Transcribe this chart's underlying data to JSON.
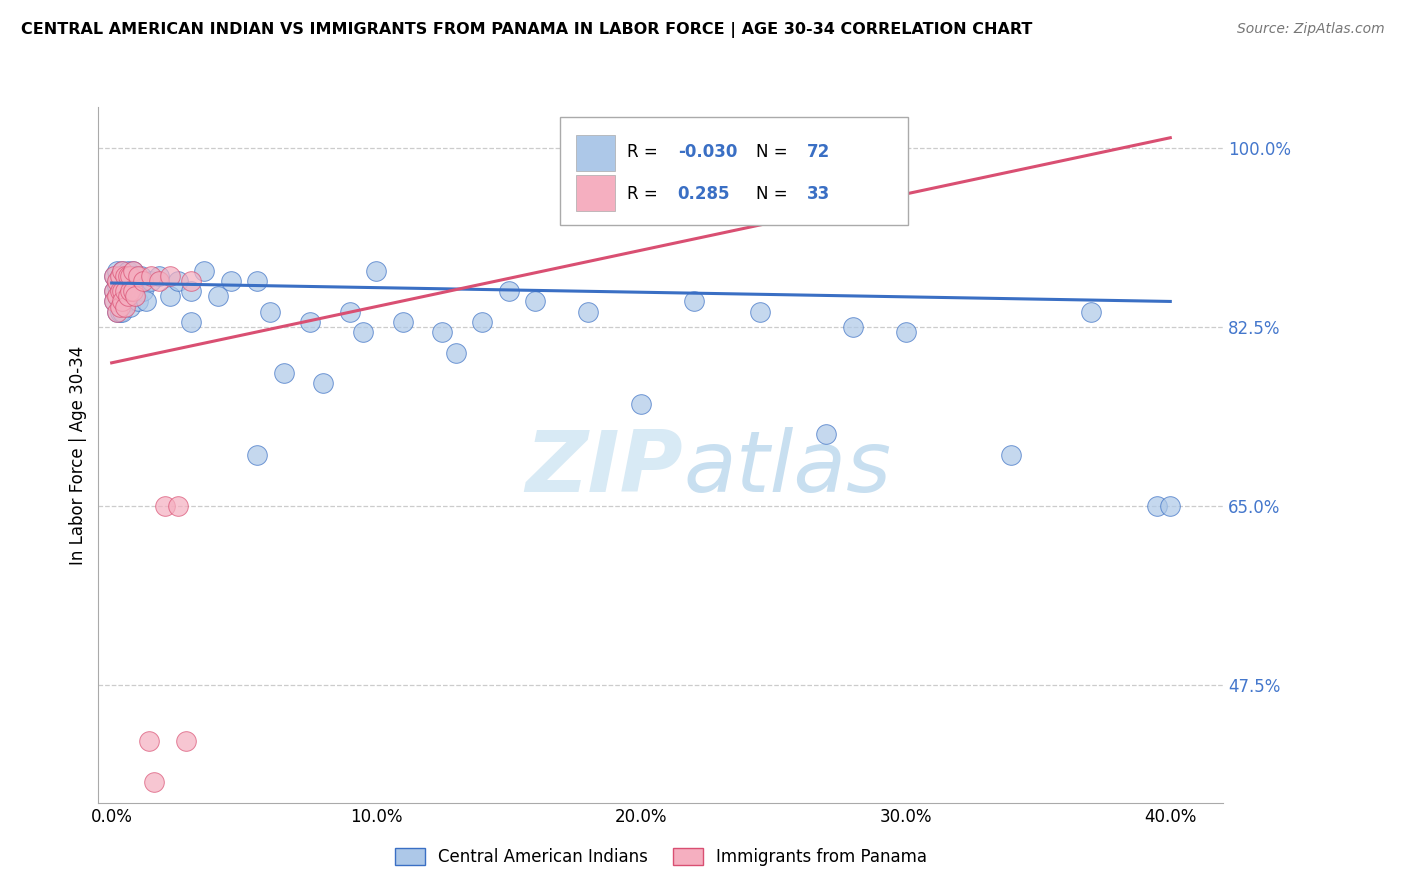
{
  "title": "CENTRAL AMERICAN INDIAN VS IMMIGRANTS FROM PANAMA IN LABOR FORCE | AGE 30-34 CORRELATION CHART",
  "source": "Source: ZipAtlas.com",
  "ylabel": "In Labor Force | Age 30-34",
  "blue_R": "-0.030",
  "blue_N": "72",
  "pink_R": "0.285",
  "pink_N": "33",
  "blue_color": "#adc8e8",
  "pink_color": "#f5afc0",
  "blue_line_color": "#3a6fc4",
  "pink_line_color": "#d94f72",
  "watermark_zip": "ZIP",
  "watermark_atlas": "atlas",
  "legend_label_blue": "Central American Indians",
  "legend_label_pink": "Immigrants from Panama",
  "blue_points_x": [
    0.001,
    0.001,
    0.001,
    0.002,
    0.002,
    0.002,
    0.002,
    0.002,
    0.003,
    0.003,
    0.003,
    0.003,
    0.003,
    0.003,
    0.004,
    0.004,
    0.004,
    0.004,
    0.005,
    0.005,
    0.005,
    0.005,
    0.006,
    0.006,
    0.006,
    0.007,
    0.007,
    0.007,
    0.008,
    0.008,
    0.009,
    0.009,
    0.01,
    0.01,
    0.011,
    0.012,
    0.013,
    0.015,
    0.018,
    0.022,
    0.025,
    0.03,
    0.035,
    0.04,
    0.045,
    0.055,
    0.06,
    0.065,
    0.075,
    0.09,
    0.1,
    0.11,
    0.125,
    0.14,
    0.16,
    0.18,
    0.2,
    0.22,
    0.245,
    0.27,
    0.3,
    0.34,
    0.37,
    0.395,
    0.15,
    0.055,
    0.03,
    0.08,
    0.095,
    0.13,
    0.28,
    0.4
  ],
  "blue_points_y": [
    0.875,
    0.86,
    0.85,
    0.87,
    0.855,
    0.84,
    0.88,
    0.865,
    0.875,
    0.86,
    0.85,
    0.87,
    0.84,
    0.855,
    0.88,
    0.86,
    0.85,
    0.84,
    0.875,
    0.86,
    0.85,
    0.87,
    0.88,
    0.865,
    0.85,
    0.875,
    0.86,
    0.845,
    0.88,
    0.86,
    0.875,
    0.855,
    0.87,
    0.85,
    0.875,
    0.86,
    0.85,
    0.87,
    0.875,
    0.855,
    0.87,
    0.86,
    0.88,
    0.855,
    0.87,
    0.87,
    0.84,
    0.78,
    0.83,
    0.84,
    0.88,
    0.83,
    0.82,
    0.83,
    0.85,
    0.84,
    0.75,
    0.85,
    0.84,
    0.72,
    0.82,
    0.7,
    0.84,
    0.65,
    0.86,
    0.7,
    0.83,
    0.77,
    0.82,
    0.8,
    0.825,
    0.65
  ],
  "pink_points_x": [
    0.001,
    0.001,
    0.001,
    0.002,
    0.002,
    0.002,
    0.003,
    0.003,
    0.003,
    0.004,
    0.004,
    0.004,
    0.005,
    0.005,
    0.005,
    0.006,
    0.006,
    0.007,
    0.007,
    0.008,
    0.008,
    0.009,
    0.01,
    0.012,
    0.015,
    0.018,
    0.022,
    0.03,
    0.02,
    0.025,
    0.028,
    0.014,
    0.016
  ],
  "pink_points_y": [
    0.875,
    0.86,
    0.85,
    0.87,
    0.855,
    0.84,
    0.875,
    0.86,
    0.845,
    0.88,
    0.86,
    0.85,
    0.875,
    0.86,
    0.845,
    0.875,
    0.855,
    0.875,
    0.86,
    0.88,
    0.86,
    0.855,
    0.875,
    0.87,
    0.875,
    0.87,
    0.875,
    0.87,
    0.65,
    0.65,
    0.42,
    0.42,
    0.38
  ],
  "blue_line_x": [
    0.0,
    0.4
  ],
  "blue_line_y": [
    0.868,
    0.85
  ],
  "pink_line_x": [
    0.0,
    0.4
  ],
  "pink_line_y": [
    0.79,
    1.01
  ],
  "xlim": [
    -0.005,
    0.42
  ],
  "ylim": [
    0.36,
    1.04
  ],
  "shown_yticks": [
    0.475,
    0.65,
    0.825,
    1.0
  ],
  "shown_ylabels": [
    "47.5%",
    "65.0%",
    "82.5%",
    "100.0%"
  ],
  "xticks": [
    0.0,
    0.1,
    0.2,
    0.3,
    0.4
  ],
  "xtick_labels": [
    "0.0%",
    "10.0%",
    "20.0%",
    "30.0%",
    "40.0%"
  ]
}
